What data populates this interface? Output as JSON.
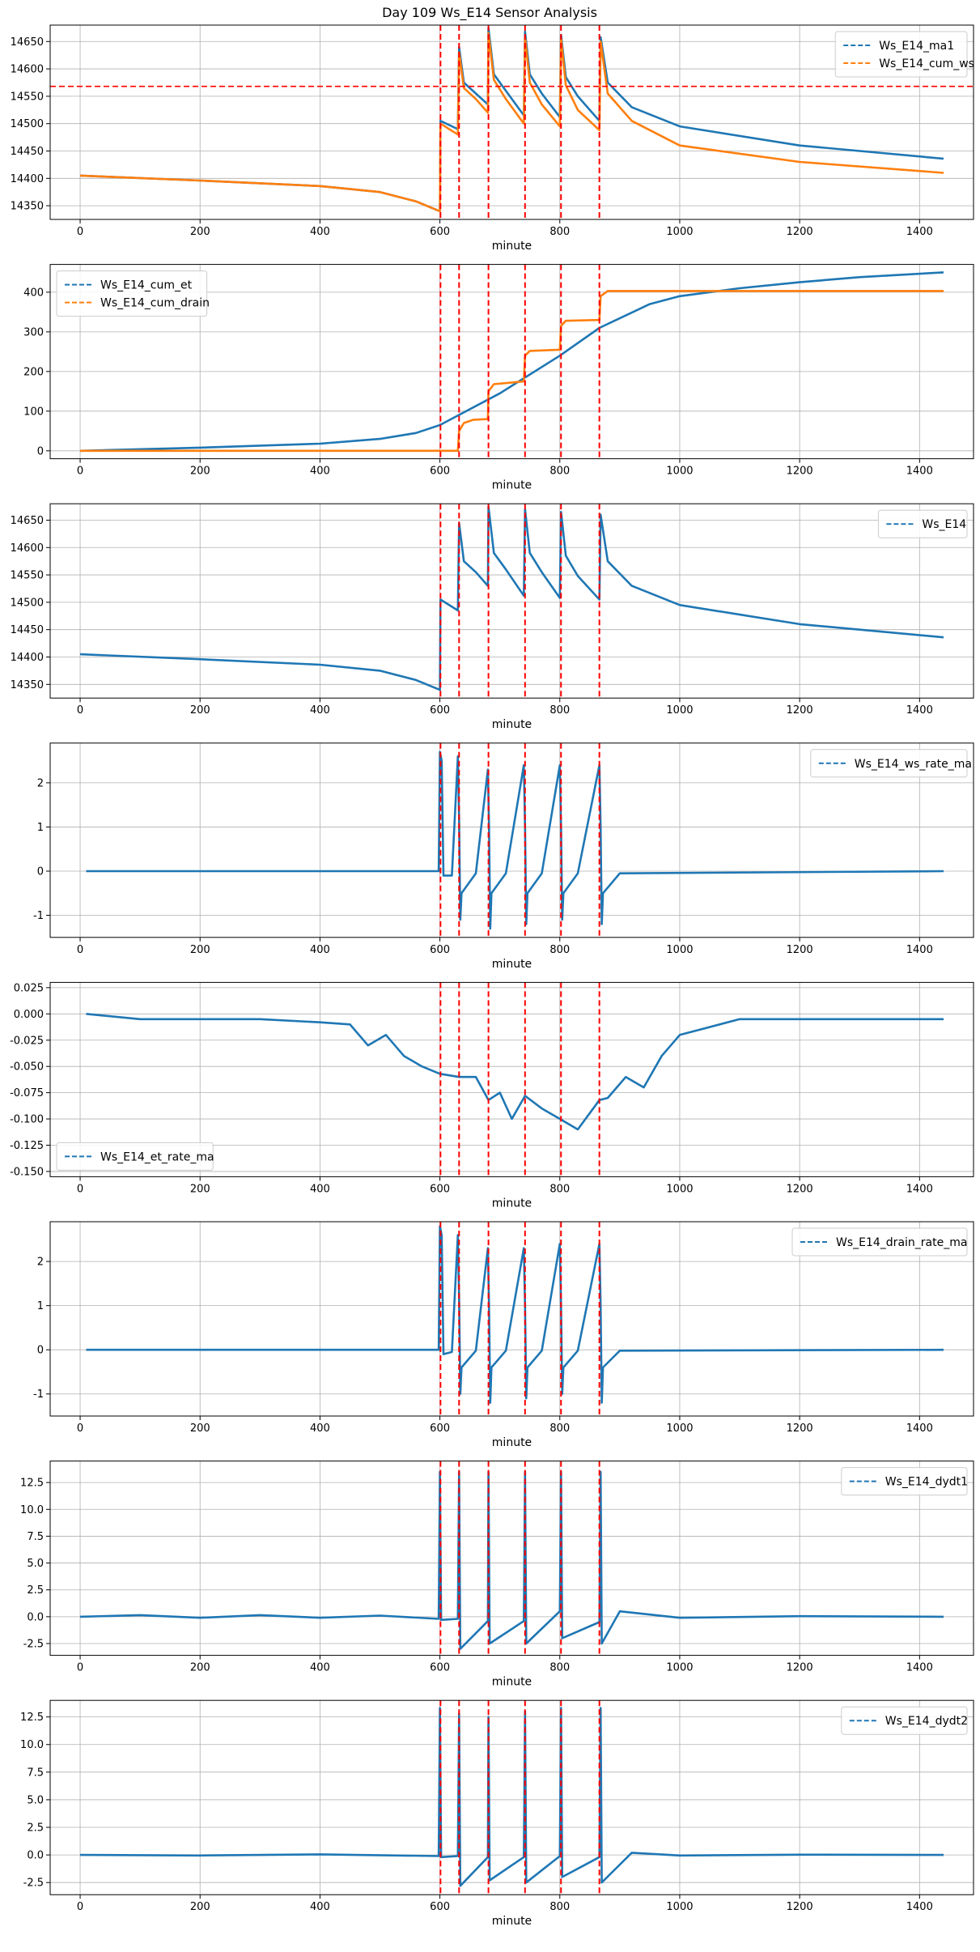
{
  "figure": {
    "title": "Day 109 Ws_E14 Sensor Analysis"
  },
  "colors": {
    "blue": "#1f77b4",
    "orange": "#ff7f0e",
    "event_line": "#ff0000",
    "grid": "#b0b0b0"
  },
  "chart_data": [
    {
      "type": "line",
      "xlabel": "minute",
      "xlim": [
        -50,
        1490
      ],
      "ylim": [
        14325,
        14680
      ],
      "xticks": [
        0,
        200,
        400,
        600,
        800,
        1000,
        1200,
        1400
      ],
      "yticks": [
        14350,
        14400,
        14450,
        14500,
        14550,
        14600,
        14650
      ],
      "legend": "top-right",
      "event_lines_x": [
        601,
        632,
        681,
        742,
        802,
        866
      ],
      "hlines": [
        14568
      ],
      "series": [
        {
          "name": "Ws_E14_ma1",
          "color": "#1f77b4",
          "x": [
            0,
            200,
            400,
            500,
            560,
            600,
            601,
            630,
            632,
            640,
            660,
            680,
            681,
            690,
            710,
            740,
            742,
            750,
            770,
            800,
            802,
            810,
            830,
            866,
            868,
            880,
            920,
            1000,
            1200,
            1440
          ],
          "y": [
            14405,
            14396,
            14386,
            14375,
            14358,
            14340,
            14505,
            14490,
            14640,
            14575,
            14555,
            14535,
            14675,
            14590,
            14560,
            14515,
            14668,
            14590,
            14555,
            14512,
            14662,
            14585,
            14550,
            14505,
            14658,
            14575,
            14530,
            14495,
            14460,
            14436
          ]
        },
        {
          "name": "Ws_E14_cum_ws",
          "color": "#ff7f0e",
          "x": [
            0,
            200,
            400,
            500,
            560,
            600,
            601,
            630,
            632,
            640,
            660,
            680,
            681,
            690,
            710,
            740,
            742,
            750,
            770,
            800,
            802,
            810,
            830,
            866,
            868,
            880,
            920,
            1000,
            1200,
            1440
          ],
          "y": [
            14405,
            14396,
            14386,
            14375,
            14358,
            14340,
            14500,
            14480,
            14630,
            14565,
            14545,
            14520,
            14665,
            14580,
            14545,
            14500,
            14658,
            14575,
            14535,
            14495,
            14655,
            14570,
            14525,
            14488,
            14650,
            14555,
            14505,
            14460,
            14430,
            14410
          ]
        }
      ]
    },
    {
      "type": "line",
      "xlabel": "minute",
      "xlim": [
        -50,
        1490
      ],
      "ylim": [
        -20,
        470
      ],
      "xticks": [
        0,
        200,
        400,
        600,
        800,
        1000,
        1200,
        1400
      ],
      "yticks": [
        0,
        100,
        200,
        300,
        400
      ],
      "legend": "top-left",
      "event_lines_x": [
        601,
        632,
        681,
        742,
        802,
        866
      ],
      "hlines": [],
      "series": [
        {
          "name": "Ws_E14_cum_et",
          "color": "#1f77b4",
          "x": [
            0,
            200,
            400,
            500,
            560,
            600,
            700,
            800,
            866,
            950,
            1000,
            1100,
            1200,
            1300,
            1440
          ],
          "y": [
            0,
            8,
            18,
            30,
            45,
            65,
            145,
            240,
            310,
            370,
            390,
            410,
            425,
            438,
            450
          ]
        },
        {
          "name": "Ws_E14_cum_drain",
          "color": "#ff7f0e",
          "x": [
            0,
            630,
            632,
            640,
            655,
            680,
            681,
            690,
            740,
            742,
            750,
            800,
            802,
            810,
            866,
            868,
            880,
            1440
          ],
          "y": [
            0,
            0,
            50,
            70,
            78,
            80,
            150,
            168,
            175,
            240,
            252,
            255,
            315,
            328,
            330,
            390,
            403,
            403
          ]
        }
      ]
    },
    {
      "type": "line",
      "xlabel": "minute",
      "xlim": [
        -50,
        1490
      ],
      "ylim": [
        14325,
        14680
      ],
      "xticks": [
        0,
        200,
        400,
        600,
        800,
        1000,
        1200,
        1400
      ],
      "yticks": [
        14350,
        14400,
        14450,
        14500,
        14550,
        14600,
        14650
      ],
      "legend": "top-right",
      "event_lines_x": [
        601,
        632,
        681,
        742,
        802,
        866
      ],
      "hlines": [],
      "series": [
        {
          "name": "Ws_E14",
          "color": "#1f77b4",
          "x": [
            0,
            200,
            400,
            500,
            560,
            600,
            601,
            630,
            632,
            640,
            660,
            680,
            681,
            690,
            710,
            740,
            742,
            750,
            770,
            800,
            802,
            810,
            830,
            866,
            868,
            880,
            920,
            1000,
            1200,
            1440
          ],
          "y": [
            14405,
            14396,
            14386,
            14375,
            14358,
            14340,
            14505,
            14485,
            14645,
            14575,
            14555,
            14530,
            14675,
            14590,
            14560,
            14512,
            14670,
            14590,
            14555,
            14508,
            14665,
            14585,
            14548,
            14505,
            14660,
            14575,
            14530,
            14495,
            14460,
            14436
          ]
        }
      ]
    },
    {
      "type": "line",
      "xlabel": "minute",
      "xlim": [
        -50,
        1490
      ],
      "ylim": [
        -1.5,
        2.9
      ],
      "xticks": [
        0,
        200,
        400,
        600,
        800,
        1000,
        1200,
        1400
      ],
      "yticks": [
        -1,
        0,
        1,
        2
      ],
      "legend": "top-right",
      "event_lines_x": [
        601,
        632,
        681,
        742,
        802,
        866
      ],
      "hlines": [],
      "series": [
        {
          "name": "Ws_E14_ws_rate_ma",
          "color": "#1f77b4",
          "x": [
            10,
            598,
            600,
            603,
            606,
            620,
            630,
            632,
            634,
            636,
            660,
            680,
            682,
            684,
            686,
            710,
            740,
            742,
            744,
            746,
            770,
            800,
            802,
            804,
            806,
            830,
            866,
            868,
            870,
            872,
            900,
            1440
          ],
          "y": [
            0,
            0,
            2.7,
            2.5,
            -0.1,
            -0.1,
            2.6,
            1.2,
            -1.1,
            -0.5,
            -0.05,
            2.3,
            1.0,
            -1.3,
            -0.5,
            -0.05,
            2.4,
            1.0,
            -1.2,
            -0.5,
            -0.05,
            2.4,
            1.0,
            -1.1,
            -0.5,
            -0.05,
            2.4,
            1.0,
            -1.2,
            -0.5,
            -0.05,
            0
          ]
        }
      ]
    },
    {
      "type": "line",
      "xlabel": "minute",
      "xlim": [
        -50,
        1490
      ],
      "ylim": [
        -0.155,
        0.03
      ],
      "xticks": [
        0,
        200,
        400,
        600,
        800,
        1000,
        1200,
        1400
      ],
      "yticks": [
        -0.15,
        -0.125,
        -0.1,
        -0.075,
        -0.05,
        -0.025,
        0.0,
        0.025
      ],
      "ytick_labels": [
        "-0.150",
        "-0.125",
        "-0.100",
        "-0.075",
        "-0.050",
        "-0.025",
        "0.000",
        "0.025"
      ],
      "legend": "bottom-left",
      "event_lines_x": [
        601,
        632,
        681,
        742,
        802,
        866
      ],
      "hlines": [],
      "series": [
        {
          "name": "Ws_E14_et_rate_ma",
          "color": "#1f77b4",
          "x": [
            10,
            100,
            200,
            300,
            400,
            450,
            480,
            510,
            540,
            570,
            600,
            632,
            660,
            681,
            700,
            720,
            742,
            770,
            800,
            830,
            866,
            880,
            910,
            940,
            970,
            1000,
            1100,
            1200,
            1300,
            1440
          ],
          "y": [
            0,
            -0.005,
            -0.005,
            -0.005,
            -0.008,
            -0.01,
            -0.03,
            -0.02,
            -0.04,
            -0.05,
            -0.057,
            -0.06,
            -0.06,
            -0.082,
            -0.075,
            -0.1,
            -0.078,
            -0.09,
            -0.1,
            -0.11,
            -0.082,
            -0.08,
            -0.06,
            -0.07,
            -0.04,
            -0.02,
            -0.005,
            -0.005,
            -0.005,
            -0.005
          ]
        }
      ]
    },
    {
      "type": "line",
      "xlabel": "minute",
      "xlim": [
        -50,
        1490
      ],
      "ylim": [
        -1.5,
        2.9
      ],
      "xticks": [
        0,
        200,
        400,
        600,
        800,
        1000,
        1200,
        1400
      ],
      "yticks": [
        -1,
        0,
        1,
        2
      ],
      "legend": "top-right",
      "event_lines_x": [
        601,
        632,
        681,
        742,
        802,
        866
      ],
      "hlines": [],
      "series": [
        {
          "name": "Ws_E14_drain_rate_ma",
          "color": "#1f77b4",
          "x": [
            10,
            598,
            600,
            603,
            606,
            620,
            630,
            632,
            634,
            636,
            660,
            680,
            682,
            684,
            686,
            710,
            740,
            742,
            744,
            746,
            770,
            800,
            802,
            804,
            806,
            830,
            866,
            868,
            870,
            872,
            900,
            1440
          ],
          "y": [
            0,
            0,
            2.8,
            2.6,
            -0.1,
            -0.05,
            2.6,
            1.2,
            -1.0,
            -0.4,
            -0.02,
            2.3,
            1.0,
            -1.2,
            -0.4,
            -0.02,
            2.3,
            1.0,
            -1.1,
            -0.4,
            -0.02,
            2.4,
            1.0,
            -1.0,
            -0.4,
            -0.02,
            2.4,
            1.0,
            -1.2,
            -0.4,
            -0.02,
            0
          ]
        }
      ]
    },
    {
      "type": "line",
      "xlabel": "minute",
      "xlim": [
        -50,
        1490
      ],
      "ylim": [
        -3.6,
        14.5
      ],
      "xticks": [
        0,
        200,
        400,
        600,
        800,
        1000,
        1200,
        1400
      ],
      "yticks": [
        -2.5,
        0.0,
        2.5,
        5.0,
        7.5,
        10.0,
        12.5
      ],
      "ytick_labels": [
        "-2.5",
        "0.0",
        "2.5",
        "5.0",
        "7.5",
        "10.0",
        "12.5"
      ],
      "legend": "top-right",
      "event_lines_x": [
        601,
        632,
        681,
        742,
        802,
        866
      ],
      "hlines": [],
      "series": [
        {
          "name": "Ws_E14_dydt1",
          "color": "#1f77b4",
          "x": [
            0,
            100,
            200,
            300,
            400,
            500,
            598,
            600,
            602,
            630,
            632,
            634,
            680,
            681,
            683,
            740,
            742,
            744,
            800,
            802,
            804,
            866,
            868,
            870,
            900,
            1000,
            1200,
            1440
          ],
          "y": [
            0,
            0.15,
            -0.1,
            0.15,
            -0.1,
            0.1,
            -0.2,
            13.5,
            -0.3,
            -0.2,
            13.5,
            -3.0,
            -0.4,
            13.5,
            -2.5,
            -0.4,
            13.5,
            -2.5,
            0.5,
            13.5,
            -2.0,
            -0.5,
            13.5,
            -2.5,
            0.5,
            -0.1,
            0.05,
            0
          ]
        }
      ]
    },
    {
      "type": "line",
      "xlabel": "minute",
      "xlim": [
        -50,
        1490
      ],
      "ylim": [
        -3.6,
        14.0
      ],
      "xticks": [
        0,
        200,
        400,
        600,
        800,
        1000,
        1200,
        1400
      ],
      "yticks": [
        -2.5,
        0.0,
        2.5,
        5.0,
        7.5,
        10.0,
        12.5
      ],
      "ytick_labels": [
        "-2.5",
        "0.0",
        "2.5",
        "5.0",
        "7.5",
        "10.0",
        "12.5"
      ],
      "legend": "top-right",
      "event_lines_x": [
        601,
        632,
        681,
        742,
        802,
        866
      ],
      "hlines": [],
      "series": [
        {
          "name": "Ws_E14_dydt2",
          "color": "#1f77b4",
          "x": [
            0,
            200,
            400,
            598,
            600,
            602,
            630,
            632,
            634,
            680,
            681,
            683,
            740,
            742,
            744,
            800,
            802,
            804,
            866,
            868,
            870,
            920,
            1000,
            1200,
            1440
          ],
          "y": [
            0,
            -0.05,
            0.05,
            -0.1,
            13.3,
            -0.2,
            -0.1,
            12.8,
            -2.8,
            -0.2,
            12.5,
            -2.3,
            -0.2,
            13.0,
            -2.5,
            -0.1,
            13.3,
            -2.0,
            -0.2,
            13.3,
            -2.5,
            0.2,
            -0.05,
            0.02,
            0
          ]
        }
      ]
    }
  ]
}
